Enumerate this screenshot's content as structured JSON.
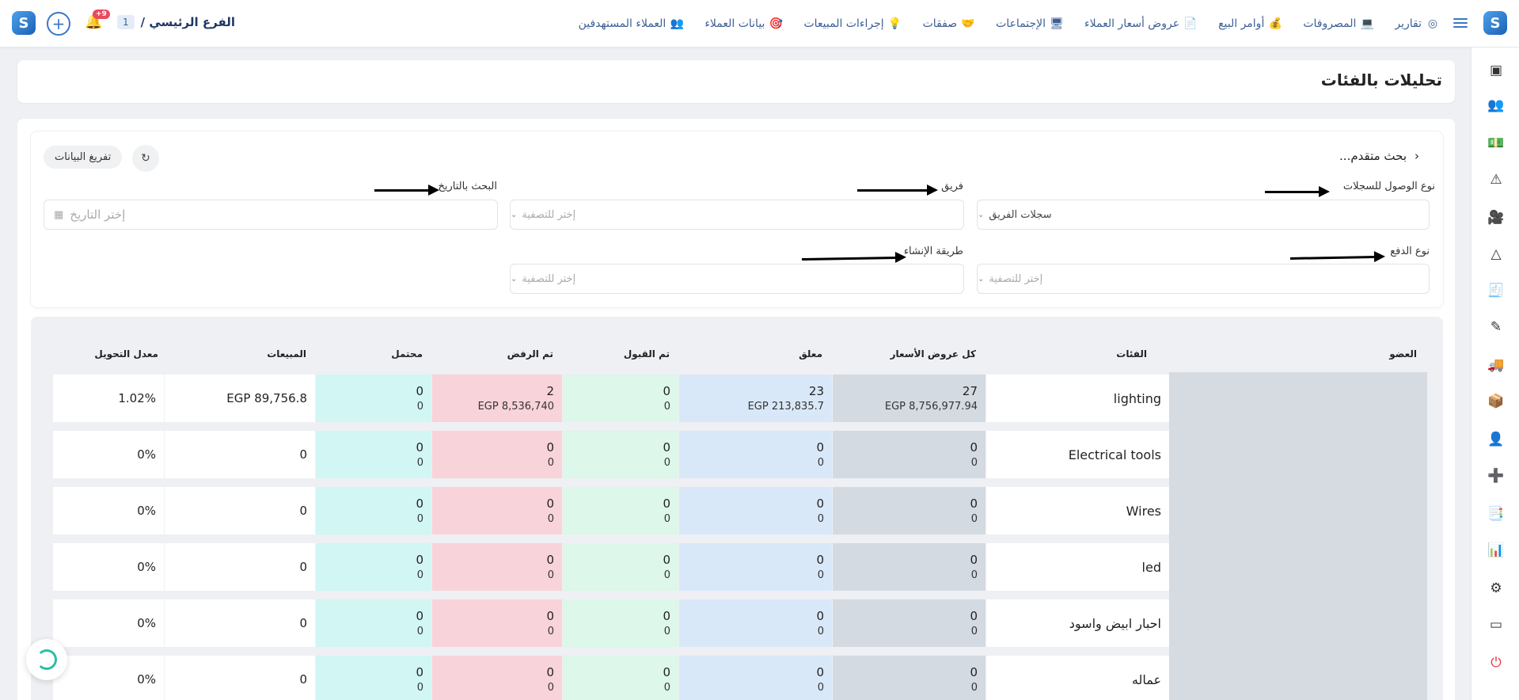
{
  "topbar": {
    "branch_name": "الفرع الرئيسي /",
    "branch_num": "1",
    "notif_count": "+9",
    "nav": [
      {
        "label": "العملاء المستهدفين",
        "icon": "target-customers-icon",
        "glyph": "👥"
      },
      {
        "label": "بيانات العملاء",
        "icon": "customer-data-icon",
        "glyph": "🎯"
      },
      {
        "label": "إجراءات المبيعات",
        "icon": "sales-actions-icon",
        "glyph": "💡"
      },
      {
        "label": "صفقات",
        "icon": "deals-icon",
        "glyph": "🤝"
      },
      {
        "label": "الإجتماعات",
        "icon": "meetings-icon",
        "glyph": "🖥"
      },
      {
        "label": "عروض أسعار العملاء",
        "icon": "quotations-icon",
        "glyph": "📄"
      },
      {
        "label": "أوامر البيع",
        "icon": "sales-orders-icon",
        "glyph": "💰"
      },
      {
        "label": "المصروفات",
        "icon": "expenses-icon",
        "glyph": "💻"
      },
      {
        "label": "تقارير",
        "icon": "reports-icon",
        "glyph": "◎"
      }
    ]
  },
  "page": {
    "title": "تحليلات بالفئات"
  },
  "filters": {
    "advanced_title": "بحث متقدم...",
    "clear_label": "تفريغ البيانات",
    "access_type_label": "نوع الوصول للسجلات",
    "access_type_value": "سجلات الفريق",
    "team_label": "فريق",
    "team_placeholder": "إختر للتصفية",
    "date_label": "البحث بالتاريخ",
    "date_placeholder": "إختر التاريخ",
    "payment_type_label": "نوع الدفع",
    "payment_type_placeholder": "إختر للتصفية",
    "creation_method_label": "طريقة الإنشاء",
    "creation_method_placeholder": "إختر للتصفية"
  },
  "table": {
    "headers": {
      "member": "العضو",
      "category": "الفئات",
      "all_quotes": "كل عروض الأسعار",
      "pending": "معلق",
      "accepted": "تم القبول",
      "rejected": "تم الرفض",
      "potential": "محتمل",
      "sales": "المبيعات",
      "conversion": "معدل التحويل"
    },
    "rows": [
      {
        "category": "lighting",
        "all": "27",
        "all_amt": "EGP 8,756,977.94",
        "pending": "23",
        "pending_amt": "EGP 213,835.7",
        "accepted": "0",
        "accepted_amt": "0",
        "rejected": "2",
        "rejected_amt": "EGP 8,536,740",
        "potential": "0",
        "potential_amt": "0",
        "sales": "EGP 89,756.8",
        "conversion": "1.02%"
      },
      {
        "category": "Electrical tools",
        "all": "0",
        "all_amt": "0",
        "pending": "0",
        "pending_amt": "0",
        "accepted": "0",
        "accepted_amt": "0",
        "rejected": "0",
        "rejected_amt": "0",
        "potential": "0",
        "potential_amt": "0",
        "sales": "0",
        "conversion": "0%"
      },
      {
        "category": "Wires",
        "all": "0",
        "all_amt": "0",
        "pending": "0",
        "pending_amt": "0",
        "accepted": "0",
        "accepted_amt": "0",
        "rejected": "0",
        "rejected_amt": "0",
        "potential": "0",
        "potential_amt": "0",
        "sales": "0",
        "conversion": "0%"
      },
      {
        "category": "led",
        "all": "0",
        "all_amt": "0",
        "pending": "0",
        "pending_amt": "0",
        "accepted": "0",
        "accepted_amt": "0",
        "rejected": "0",
        "rejected_amt": "0",
        "potential": "0",
        "potential_amt": "0",
        "sales": "0",
        "conversion": "0%"
      },
      {
        "category": "احبار ابيض واسود",
        "all": "0",
        "all_amt": "0",
        "pending": "0",
        "pending_amt": "0",
        "accepted": "0",
        "accepted_amt": "0",
        "rejected": "0",
        "rejected_amt": "0",
        "potential": "0",
        "potential_amt": "0",
        "sales": "0",
        "conversion": "0%"
      },
      {
        "category": "عماله",
        "all": "0",
        "all_amt": "0",
        "pending": "0",
        "pending_amt": "0",
        "accepted": "0",
        "accepted_amt": "0",
        "rejected": "0",
        "rejected_amt": "0",
        "potential": "0",
        "potential_amt": "0",
        "sales": "0",
        "conversion": "0%"
      }
    ]
  },
  "sidebar_icons": [
    {
      "name": "cards-icon",
      "glyph": "▣"
    },
    {
      "name": "users-group-icon",
      "glyph": "👥"
    },
    {
      "name": "money-icon",
      "glyph": "💵"
    },
    {
      "name": "warning-icon",
      "glyph": "⚠"
    },
    {
      "name": "video-icon",
      "glyph": "🎥"
    },
    {
      "name": "pyramid-icon",
      "glyph": "△"
    },
    {
      "name": "invoice-icon",
      "glyph": "🧾"
    },
    {
      "name": "pen-icon",
      "glyph": "✎"
    },
    {
      "name": "truck-icon",
      "glyph": "🚚"
    },
    {
      "name": "box-icon",
      "glyph": "📦"
    },
    {
      "name": "user-settings-icon",
      "glyph": "👤"
    },
    {
      "name": "add-report-icon",
      "glyph": "➕"
    },
    {
      "name": "document-hand-icon",
      "glyph": "📑"
    },
    {
      "name": "analytics-icon",
      "glyph": "📊"
    },
    {
      "name": "settings-icon",
      "glyph": "⚙"
    },
    {
      "name": "monitor-icon",
      "glyph": "▭"
    },
    {
      "name": "power-icon",
      "glyph": "⏻"
    }
  ],
  "colors": {
    "accent": "#3a78c4",
    "all_quotes_bg": "#d4dae2",
    "pending_bg": "#d9e8f8",
    "accepted_bg": "#ddf7ea",
    "rejected_bg": "#f9d3da",
    "potential_bg": "#d2f6f4",
    "power_red": "#e0303c"
  }
}
